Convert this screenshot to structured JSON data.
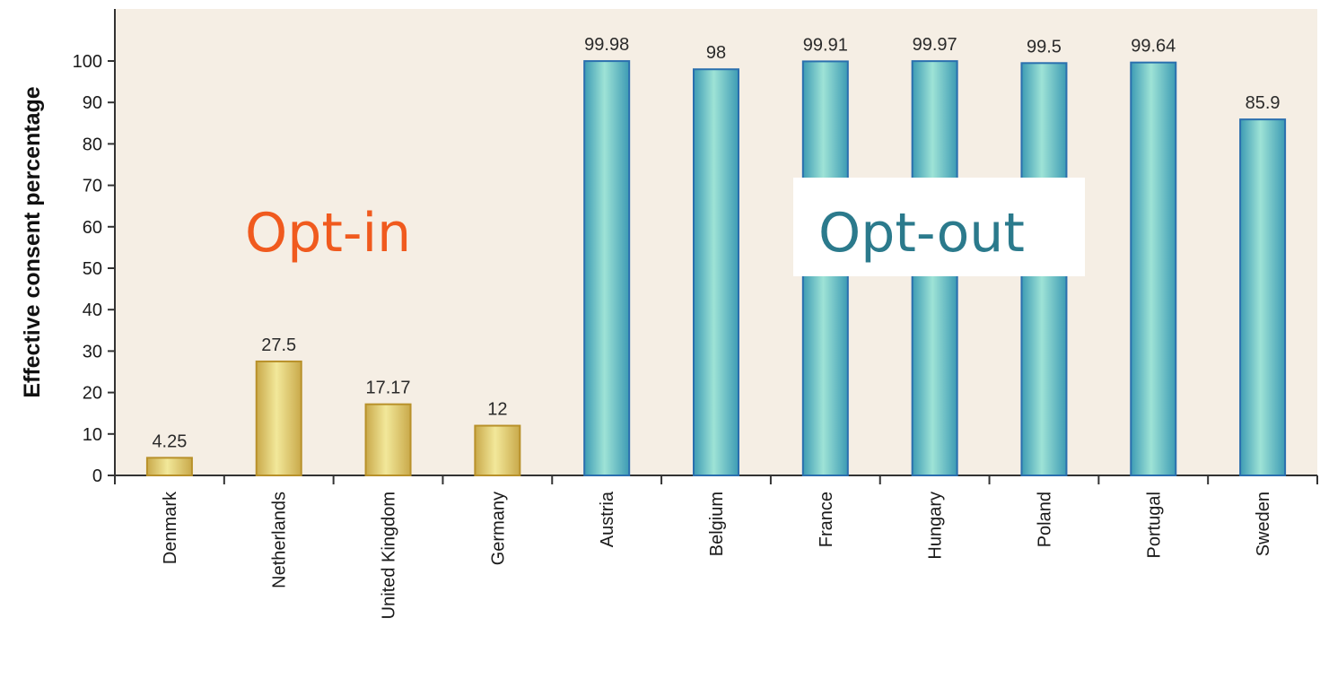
{
  "chart_data": {
    "type": "bar",
    "title": "",
    "xlabel": "",
    "ylabel": "Effective consent percentage",
    "ylim": [
      0,
      110
    ],
    "yticks": [
      0,
      10,
      20,
      30,
      40,
      50,
      60,
      70,
      80,
      90,
      100
    ],
    "grid": false,
    "categories": [
      "Denmark",
      "Netherlands",
      "United Kingdom",
      "Germany",
      "Austria",
      "Belgium",
      "France",
      "Hungary",
      "Poland",
      "Portugal",
      "Sweden"
    ],
    "values": [
      4.25,
      27.5,
      17.17,
      12,
      99.98,
      98,
      99.91,
      99.97,
      99.5,
      99.64,
      85.9
    ],
    "value_labels": [
      "4.25",
      "27.5",
      "17.17",
      "12",
      "99.98",
      "98",
      "99.91",
      "99.97",
      "99.5",
      "99.64",
      "85.9"
    ],
    "groups": [
      {
        "name": "Opt-in",
        "color": "#f05a1e",
        "bar_color": "#e3d57a",
        "bar_edge": "#b8912a",
        "members": [
          "Denmark",
          "Netherlands",
          "United Kingdom",
          "Germany"
        ]
      },
      {
        "name": "Opt-out",
        "color": "#2b7a8c",
        "bar_color": "#7fd3c6",
        "bar_edge": "#2a6fae",
        "members": [
          "Austria",
          "Belgium",
          "France",
          "Hungary",
          "Poland",
          "Portugal",
          "Sweden"
        ]
      }
    ],
    "plot_background": "#f5eee4"
  }
}
